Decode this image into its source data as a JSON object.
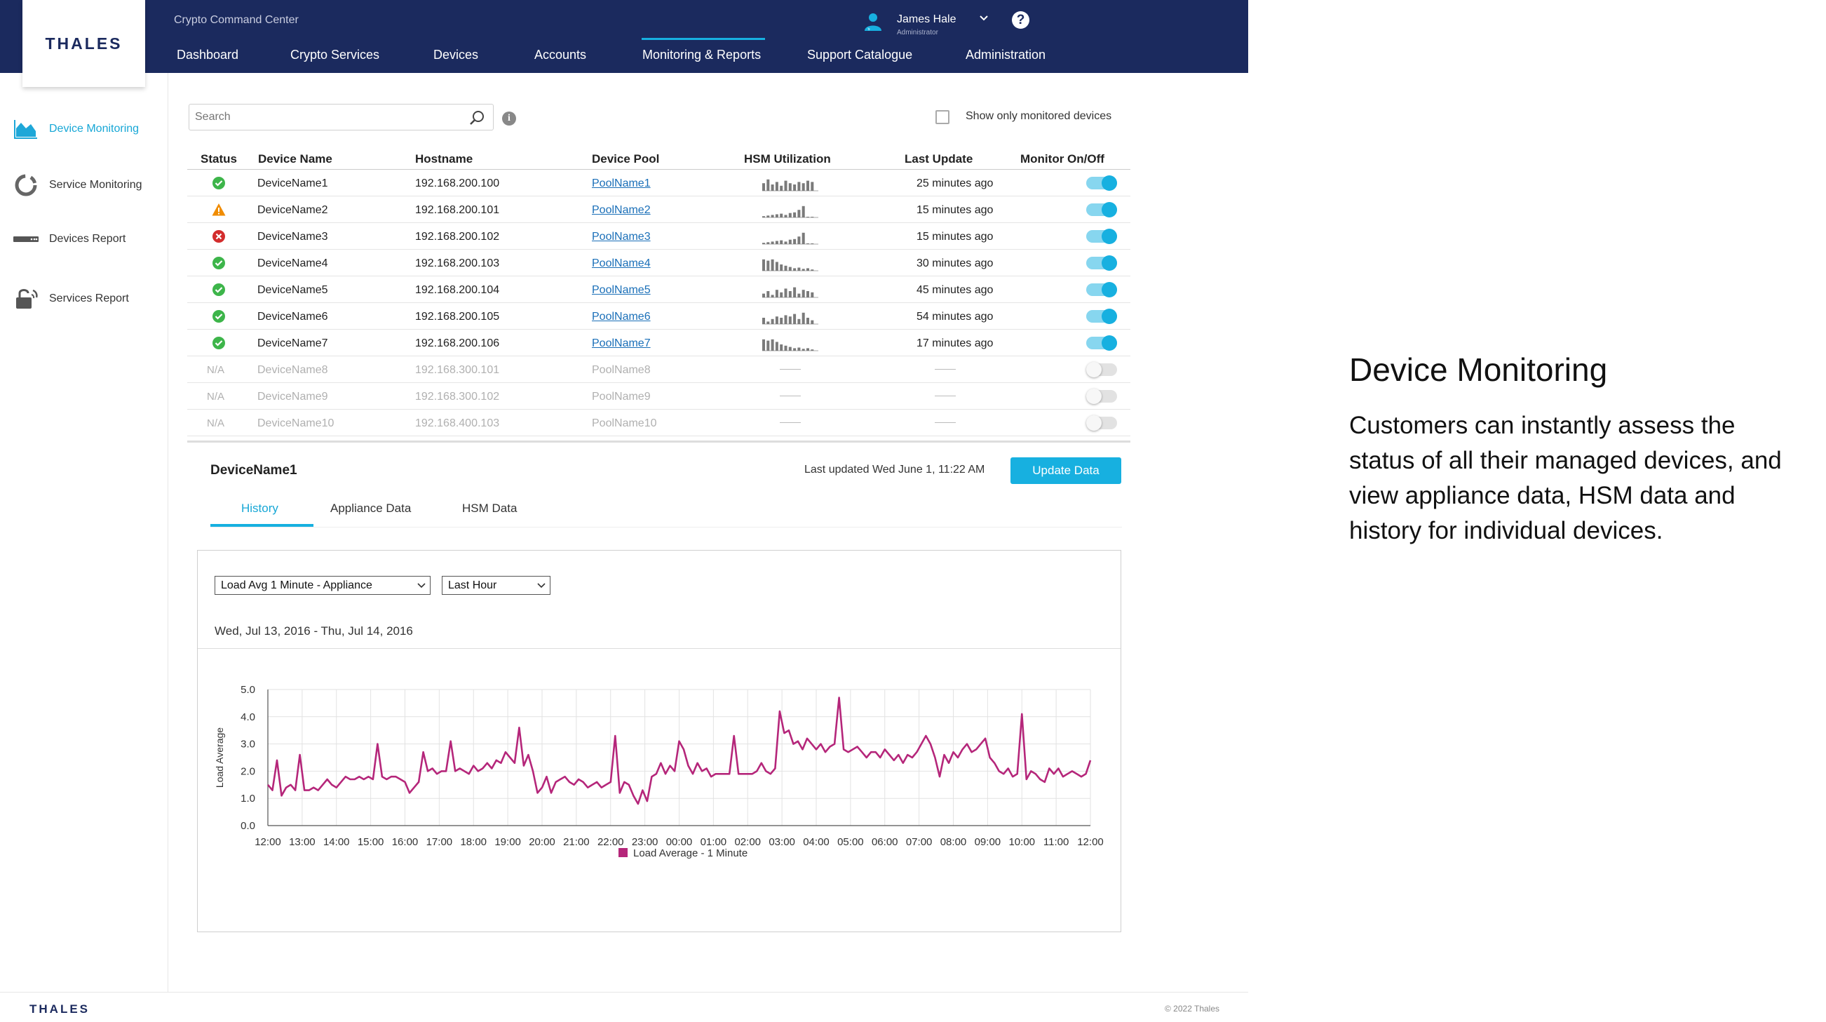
{
  "app": {
    "brand": "THALES",
    "title": "Crypto Command Center"
  },
  "nav": {
    "items": [
      "Dashboard",
      "Crypto Services",
      "Devices",
      "Accounts",
      "Monitoring & Reports",
      "Support Catalogue",
      "Administration"
    ],
    "active": "Monitoring & Reports"
  },
  "user": {
    "name": "James Hale",
    "role": "Administrator",
    "help_label": "?"
  },
  "sidebar": {
    "items": [
      {
        "label": "Device Monitoring",
        "icon": "area-chart-icon",
        "active": true
      },
      {
        "label": "Service Monitoring",
        "icon": "ring-chart-icon",
        "active": false
      },
      {
        "label": "Devices Report",
        "icon": "server-icon",
        "active": false
      },
      {
        "label": "Services Report",
        "icon": "lock-icon",
        "active": false
      }
    ]
  },
  "search": {
    "placeholder": "Search",
    "info_label": "i"
  },
  "filter": {
    "show_monitored_label": "Show only monitored devices",
    "checked": false
  },
  "table": {
    "headers": [
      "Status",
      "Device Name",
      "Hostname",
      "Device Pool",
      "HSM Utilization",
      "Last Update",
      "Monitor On/Off"
    ],
    "rows": [
      {
        "status": "ok",
        "status_text": "",
        "name": "DeviceName1",
        "host": "192.168.200.100",
        "pool": "PoolName1",
        "util": [
          0.6,
          0.9,
          0.5,
          0.7,
          0.4,
          0.8,
          0.6,
          0.5,
          0.7,
          0.6,
          0.8,
          0.7
        ],
        "update": "25 minutes ago",
        "monitor": true
      },
      {
        "status": "warn",
        "status_text": "",
        "name": "DeviceName2",
        "host": "192.168.200.101",
        "pool": "PoolName2",
        "util": [
          0.1,
          0.15,
          0.2,
          0.25,
          0.3,
          0.2,
          0.35,
          0.4,
          0.6,
          0.9,
          0.05,
          0.05
        ],
        "update": "15 minutes ago",
        "monitor": true
      },
      {
        "status": "error",
        "status_text": "",
        "name": "DeviceName3",
        "host": "192.168.200.102",
        "pool": "PoolName3",
        "util": [
          0.1,
          0.15,
          0.2,
          0.25,
          0.3,
          0.2,
          0.35,
          0.4,
          0.6,
          0.9,
          0.05,
          0.05
        ],
        "update": "15 minutes ago",
        "monitor": true
      },
      {
        "status": "ok",
        "status_text": "",
        "name": "DeviceName4",
        "host": "192.168.200.103",
        "pool": "PoolName4",
        "util": [
          0.9,
          0.8,
          0.9,
          0.7,
          0.5,
          0.4,
          0.3,
          0.2,
          0.25,
          0.15,
          0.2,
          0.1
        ],
        "update": "30 minutes ago",
        "monitor": true
      },
      {
        "status": "ok",
        "status_text": "",
        "name": "DeviceName5",
        "host": "192.168.200.104",
        "pool": "PoolName5",
        "util": [
          0.3,
          0.5,
          0.2,
          0.6,
          0.4,
          0.7,
          0.5,
          0.8,
          0.3,
          0.6,
          0.5,
          0.4
        ],
        "update": "45 minutes ago",
        "monitor": true
      },
      {
        "status": "ok",
        "status_text": "",
        "name": "DeviceName6",
        "host": "192.168.200.105",
        "pool": "PoolName6",
        "util": [
          0.5,
          0.2,
          0.4,
          0.6,
          0.5,
          0.7,
          0.6,
          0.8,
          0.4,
          0.9,
          0.5,
          0.3
        ],
        "update": "54 minutes ago",
        "monitor": true
      },
      {
        "status": "ok",
        "status_text": "",
        "name": "DeviceName7",
        "host": "192.168.200.106",
        "pool": "PoolName7",
        "util": [
          0.9,
          0.8,
          0.9,
          0.7,
          0.5,
          0.4,
          0.3,
          0.2,
          0.25,
          0.15,
          0.2,
          0.1
        ],
        "update": "17 minutes ago",
        "monitor": true
      },
      {
        "status": "na",
        "status_text": "N/A",
        "name": "DeviceName8",
        "host": "192.168.300.101",
        "pool": "PoolName8",
        "util": null,
        "update": "",
        "monitor": false
      },
      {
        "status": "na",
        "status_text": "N/A",
        "name": "DeviceName9",
        "host": "192.168.300.102",
        "pool": "PoolName9",
        "util": null,
        "update": "",
        "monitor": false
      },
      {
        "status": "na",
        "status_text": "N/A",
        "name": "DeviceName10",
        "host": "192.168.400.103",
        "pool": "PoolName10",
        "util": null,
        "update": "",
        "monitor": false
      }
    ]
  },
  "detail": {
    "device_name": "DeviceName1",
    "last_updated": "Last updated Wed June 1, 11:22 AM",
    "update_button": "Update Data",
    "tabs": [
      "History",
      "Appliance Data",
      "HSM Data"
    ],
    "active_tab": "History",
    "metric_select": "Load Avg 1 Minute - Appliance",
    "range_select": "Last Hour",
    "date_range": "Wed, Jul 13, 2016 - Thu, Jul 14, 2016"
  },
  "chart_data": {
    "type": "line",
    "ylabel": "Load Average",
    "xlabel": "",
    "ylim": [
      0,
      5
    ],
    "yticks": [
      "0.0",
      "1.0",
      "2.0",
      "3.0",
      "4.0",
      "5.0"
    ],
    "xticks": [
      "12:00",
      "13:00",
      "14:00",
      "15:00",
      "16:00",
      "17:00",
      "18:00",
      "19:00",
      "20:00",
      "21:00",
      "22:00",
      "23:00",
      "00:00",
      "01:00",
      "02:00",
      "03:00",
      "04:00",
      "05:00",
      "06:00",
      "07:00",
      "08:00",
      "09:00",
      "10:00",
      "11:00",
      "12:00"
    ],
    "grid": true,
    "legend_position": "bottom",
    "series": [
      {
        "name": "Load Average - 1 Minute",
        "color": "#b5267a",
        "values": [
          1.5,
          1.3,
          2.4,
          1.1,
          1.4,
          1.5,
          1.3,
          2.6,
          1.3,
          1.3,
          1.4,
          1.3,
          1.5,
          1.7,
          1.5,
          1.4,
          1.6,
          1.8,
          1.7,
          1.7,
          1.8,
          1.7,
          1.8,
          1.7,
          3.0,
          1.8,
          1.7,
          1.8,
          1.8,
          1.7,
          1.6,
          1.2,
          1.4,
          1.6,
          2.7,
          2.0,
          2.1,
          1.9,
          2.0,
          2.0,
          3.1,
          2.0,
          2.1,
          2.0,
          1.9,
          2.2,
          2.0,
          2.1,
          2.3,
          2.1,
          2.4,
          2.3,
          2.7,
          2.5,
          2.3,
          3.6,
          2.2,
          2.6,
          2.0,
          1.2,
          1.4,
          1.8,
          1.2,
          1.6,
          1.7,
          1.8,
          1.6,
          1.5,
          1.7,
          1.6,
          1.4,
          1.5,
          1.6,
          1.4,
          1.5,
          1.6,
          3.3,
          1.2,
          1.6,
          1.5,
          1.1,
          0.8,
          1.3,
          0.9,
          1.8,
          1.9,
          2.3,
          1.9,
          2.2,
          2.0,
          3.1,
          2.8,
          2.2,
          1.9,
          2.3,
          2.0,
          2.1,
          1.8,
          1.9,
          1.9,
          1.9,
          1.9,
          3.3,
          1.9,
          1.9,
          1.9,
          1.9,
          2.0,
          2.3,
          2.0,
          1.9,
          2.1,
          4.2,
          3.4,
          3.5,
          3.0,
          3.1,
          2.8,
          3.2,
          3.0,
          2.8,
          3.0,
          2.7,
          2.9,
          3.0,
          4.7,
          2.8,
          2.7,
          2.8,
          2.9,
          2.7,
          2.5,
          2.7,
          2.7,
          2.5,
          2.8,
          2.6,
          2.4,
          2.6,
          2.3,
          2.6,
          2.5,
          2.7,
          3.0,
          3.3,
          3.0,
          2.5,
          1.8,
          2.6,
          2.3,
          2.7,
          2.5,
          2.8,
          3.0,
          2.7,
          2.8,
          3.0,
          3.2,
          2.5,
          2.3,
          2.0,
          1.9,
          2.1,
          1.8,
          1.9,
          4.1,
          1.7,
          2.0,
          1.9,
          1.7,
          1.6,
          2.1,
          1.9,
          2.1,
          1.8,
          1.9,
          2.0,
          1.9,
          1.8,
          1.9,
          2.4
        ]
      }
    ]
  },
  "promo": {
    "title": "Device Monitoring",
    "text": "Customers can instantly assess the status of all their managed devices, and view appliance data, HSM data and history for individual devices."
  },
  "footer": {
    "brand": "THALES",
    "copyright": "© 2022 Thales"
  },
  "colors": {
    "header_bg": "#1b2a5e",
    "accent": "#17b0e0",
    "series": "#b5267a",
    "ok": "#3db54a",
    "warn": "#f08c00",
    "error": "#d32d2d"
  }
}
